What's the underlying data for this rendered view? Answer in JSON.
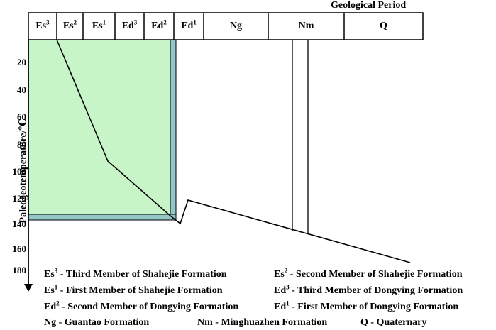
{
  "header": {
    "title": "Geological Period"
  },
  "axis": {
    "label": "Paleogeotemperature/℃",
    "ticks": [
      "20",
      "40",
      "60",
      "80",
      "100",
      "120",
      "140",
      "160",
      "180"
    ]
  },
  "periods": [
    {
      "base": "Es",
      "sup": "3"
    },
    {
      "base": "Es",
      "sup": "2"
    },
    {
      "base": "Es",
      "sup": "1"
    },
    {
      "base": "Ed",
      "sup": "3"
    },
    {
      "base": "Ed",
      "sup": "2"
    },
    {
      "base": "Ed",
      "sup": "1"
    },
    {
      "base": "Ng",
      "sup": ""
    },
    {
      "base": "Nm",
      "sup": ""
    },
    {
      "base": "Q",
      "sup": ""
    }
  ],
  "legend": [
    {
      "base": "Es",
      "sup": "3",
      "text": " - Third Member of Shahejie Formation"
    },
    {
      "base": "Es",
      "sup": "2",
      "text": " - Second Member of Shahejie Formation"
    },
    {
      "base": "Es",
      "sup": "1",
      "text": " - First Member of Shahejie Formation"
    },
    {
      "base": "Ed",
      "sup": "3",
      "text": " - Third Member of Dongying Formation"
    },
    {
      "base": "Ed",
      "sup": "2",
      "text": " - Second Member of Dongying Formation"
    },
    {
      "base": "Ed",
      "sup": "1",
      "text": " - First Member of Dongying Formation"
    },
    {
      "base": "Ng",
      "sup": "",
      "text": " - Guantao Formation"
    },
    {
      "base": "Nm",
      "sup": "",
      "text": " - Minghuazhen Formation"
    },
    {
      "base": "Q",
      "sup": "",
      "text": " - Quaternary"
    }
  ],
  "colors": {
    "fill": "#c8f5c8",
    "band": "#93c6c6",
    "line": "#000000"
  }
}
